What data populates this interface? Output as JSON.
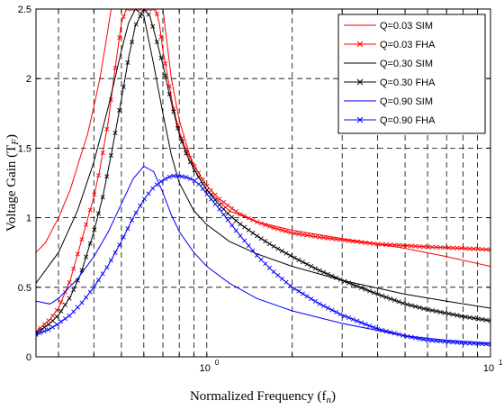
{
  "chart_data": {
    "type": "line",
    "xlabel": "Normalized Frequency (f",
    "xlabel_sub": "n",
    "xlabel_end": ")",
    "ylabel": "Voltage Gain (T",
    "ylabel_sub": "F",
    "ylabel_end": ")",
    "x_scale": "log",
    "xlim": [
      0.25,
      10
    ],
    "ylim": [
      0,
      2.5
    ],
    "y_ticks": [
      "0",
      "0.5",
      "1",
      "1.5",
      "2",
      "2.5"
    ],
    "x_ticks": [
      {
        "base": "10",
        "exp": "0",
        "value": 1
      },
      {
        "base": "10",
        "exp": "1",
        "value": 10
      }
    ],
    "x_grid": [
      0.3,
      0.4,
      0.5,
      0.6,
      0.7,
      0.8,
      0.9,
      1,
      2,
      3,
      4,
      5,
      6,
      7,
      8,
      9
    ],
    "y_grid": [
      0.5,
      1,
      1.5,
      2
    ],
    "grid": true,
    "legend_position": "top-right",
    "series": [
      {
        "name": "Q=0.03 SIM",
        "color": "#ff0000",
        "marker": "none",
        "x": [
          0.25,
          0.27,
          0.3,
          0.33,
          0.36,
          0.38,
          0.4,
          0.42,
          0.44,
          0.46,
          0.48,
          0.5,
          0.7,
          0.75,
          0.8,
          0.9,
          1.0,
          1.2,
          1.5,
          2,
          3,
          5,
          7,
          10
        ],
        "y": [
          0.75,
          0.82,
          1.0,
          1.2,
          1.45,
          1.6,
          1.8,
          2.0,
          2.25,
          2.5,
          2.5,
          2.5,
          2.5,
          2.0,
          1.7,
          1.35,
          1.2,
          1.05,
          0.97,
          0.91,
          0.85,
          0.78,
          0.72,
          0.65
        ]
      },
      {
        "name": "Q=0.03 FHA",
        "color": "#ff0000",
        "marker": "x",
        "x": [
          0.25,
          0.28,
          0.3,
          0.33,
          0.36,
          0.4,
          0.42,
          0.45,
          0.47,
          0.5,
          0.52,
          0.54,
          0.56,
          0.58,
          0.6,
          0.62,
          0.64,
          0.66,
          0.68,
          0.7,
          0.73,
          0.76,
          0.8,
          0.85,
          0.9,
          0.95,
          1.0,
          1.1,
          1.2,
          1.3,
          1.5,
          1.7,
          2,
          2.5,
          3,
          4,
          5,
          6,
          8,
          10
        ],
        "y": [
          0.18,
          0.27,
          0.35,
          0.55,
          0.82,
          1.15,
          1.35,
          1.7,
          2.0,
          2.4,
          2.5,
          2.5,
          2.5,
          2.5,
          2.5,
          2.5,
          2.5,
          2.5,
          2.4,
          2.2,
          2.0,
          1.8,
          1.62,
          1.48,
          1.38,
          1.3,
          1.23,
          1.14,
          1.08,
          1.03,
          0.97,
          0.93,
          0.89,
          0.86,
          0.84,
          0.81,
          0.8,
          0.79,
          0.78,
          0.77
        ]
      },
      {
        "name": "Q=0.30 SIM",
        "color": "#000000",
        "marker": "none",
        "x": [
          0.25,
          0.3,
          0.35,
          0.4,
          0.45,
          0.5,
          0.53,
          0.56,
          0.6,
          0.65,
          0.7,
          0.75,
          0.8,
          0.9,
          1.0,
          1.2,
          1.5,
          2,
          3,
          5,
          7,
          10
        ],
        "y": [
          0.53,
          0.75,
          1.05,
          1.4,
          1.8,
          2.2,
          2.4,
          2.5,
          2.45,
          2.1,
          1.75,
          1.45,
          1.25,
          1.05,
          0.95,
          0.83,
          0.74,
          0.65,
          0.55,
          0.45,
          0.4,
          0.35
        ]
      },
      {
        "name": "Q=0.30 FHA",
        "color": "#000000",
        "marker": "x",
        "x": [
          0.25,
          0.28,
          0.3,
          0.33,
          0.36,
          0.4,
          0.43,
          0.46,
          0.5,
          0.53,
          0.56,
          0.6,
          0.63,
          0.66,
          0.7,
          0.73,
          0.76,
          0.8,
          0.85,
          0.9,
          0.95,
          1.0,
          1.1,
          1.2,
          1.3,
          1.5,
          1.7,
          2,
          2.5,
          3,
          4,
          5,
          6,
          8,
          10
        ],
        "y": [
          0.17,
          0.24,
          0.3,
          0.43,
          0.6,
          0.9,
          1.15,
          1.45,
          1.85,
          2.15,
          2.38,
          2.5,
          2.45,
          2.3,
          2.1,
          1.93,
          1.78,
          1.6,
          1.45,
          1.35,
          1.27,
          1.2,
          1.1,
          1.02,
          0.96,
          0.87,
          0.8,
          0.72,
          0.62,
          0.55,
          0.45,
          0.38,
          0.34,
          0.29,
          0.26
        ]
      },
      {
        "name": "Q=0.90 SIM",
        "color": "#0000ff",
        "marker": "none",
        "x": [
          0.25,
          0.28,
          0.3,
          0.35,
          0.4,
          0.45,
          0.5,
          0.55,
          0.6,
          0.65,
          0.7,
          0.75,
          0.8,
          0.9,
          1.0,
          1.2,
          1.5,
          2,
          3,
          5,
          7,
          10
        ],
        "y": [
          0.4,
          0.38,
          0.42,
          0.56,
          0.72,
          0.9,
          1.1,
          1.28,
          1.37,
          1.33,
          1.18,
          1.02,
          0.9,
          0.75,
          0.65,
          0.53,
          0.42,
          0.33,
          0.24,
          0.15,
          0.12,
          0.1
        ]
      },
      {
        "name": "Q=0.90 FHA",
        "color": "#0000ff",
        "marker": "x",
        "x": [
          0.25,
          0.28,
          0.3,
          0.33,
          0.36,
          0.4,
          0.45,
          0.5,
          0.55,
          0.6,
          0.65,
          0.7,
          0.75,
          0.8,
          0.85,
          0.9,
          0.95,
          1.0,
          1.1,
          1.2,
          1.3,
          1.5,
          1.7,
          2,
          2.5,
          3,
          4,
          5,
          6,
          8,
          10
        ],
        "y": [
          0.16,
          0.2,
          0.24,
          0.3,
          0.38,
          0.5,
          0.66,
          0.83,
          1.0,
          1.13,
          1.22,
          1.27,
          1.3,
          1.3,
          1.29,
          1.27,
          1.23,
          1.17,
          1.07,
          0.97,
          0.88,
          0.73,
          0.62,
          0.5,
          0.38,
          0.3,
          0.2,
          0.15,
          0.12,
          0.1,
          0.09
        ]
      }
    ]
  }
}
